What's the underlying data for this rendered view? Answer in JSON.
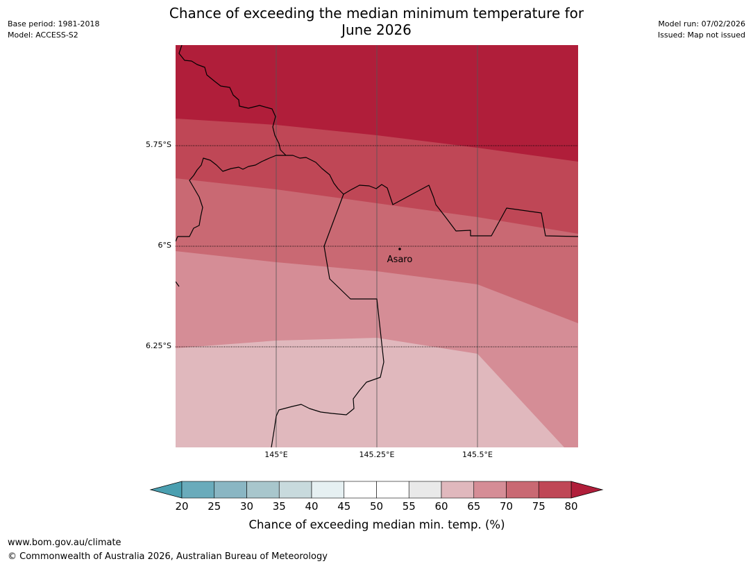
{
  "title_line1": "Chance of exceeding the median minimum temperature for",
  "title_line2": "June 2026",
  "base_period": "Base period: 1981-2018",
  "model": "Model: ACCESS-S2",
  "model_run": "Model run: 07/02/2026",
  "issued": "Issued: Map not issued",
  "map": {
    "latitude_labels": [
      "5.75°S",
      "6°S",
      "6.25°S"
    ],
    "longitude_labels": [
      "145°E",
      "145.25°E",
      "145.5°E"
    ],
    "place": "Asaro",
    "legend_fill_ranges": [
      "60-65",
      "65-70",
      "70-75",
      "75-80",
      ">80"
    ]
  },
  "colorbar": {
    "ticks": [
      "20",
      "25",
      "30",
      "35",
      "40",
      "45",
      "50",
      "55",
      "60",
      "65",
      "70",
      "75",
      "80"
    ],
    "colors_below": "#4a9fb0",
    "colors": [
      "#6aabbb",
      "#8ab6c3",
      "#a8c6cc",
      "#c8dadd",
      "#e6f0f2",
      "#ffffff",
      "#ffffff",
      "#e9e9e9",
      "#e0b8bd",
      "#d58d96",
      "#c96973",
      "#bf4756"
    ],
    "colors_above": "#b01e3a",
    "label": "Chance of exceeding median min. temp. (%)"
  },
  "footer": {
    "url": "www.bom.gov.au/climate",
    "copyright": "© Commonwealth of Australia 2026, Australian Bureau of Meteorology"
  }
}
